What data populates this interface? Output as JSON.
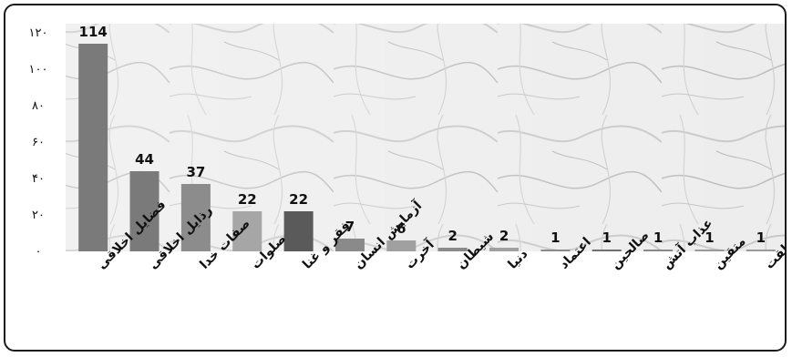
{
  "chart_data": {
    "type": "bar",
    "categories": [
      "فضایل اخلاقی",
      "رذایل اخلاقی",
      "صفات خدا",
      "صلوات",
      "فقر و غنا",
      "آزمایش انسان",
      "آخرت",
      "شیطان",
      "دنیا",
      "اعتماد",
      "صالحین",
      "عذاب آتش",
      "متقین",
      "هدف خلقت"
    ],
    "values": [
      114,
      44,
      37,
      22,
      22,
      7,
      6,
      2,
      2,
      1,
      1,
      1,
      1,
      1
    ],
    "data_labels": [
      "114",
      "44",
      "37",
      "22",
      "22",
      "7",
      "6",
      "2",
      "2",
      "1",
      "1",
      "1",
      "1",
      "1"
    ],
    "y_ticks": [
      "۰",
      "۲۰",
      "۴۰",
      "۶۰",
      "۸۰",
      "۱۰۰",
      "۱۲۰"
    ],
    "ylim": [
      0,
      120
    ],
    "grid": false,
    "bar_colors": [
      "#7a7a7a",
      "#7a7a7a",
      "#8c8c8c",
      "#a6a6a6",
      "#5a5a5a",
      "#8a8a8a",
      "#a0a0a0",
      "#8a8a8a",
      "#a0a0a0",
      "#8a8a8a",
      "#707070",
      "#8a8a8a",
      "#9a9a9a",
      "#9a9a9a"
    ],
    "title": "",
    "xlabel": "",
    "ylabel": ""
  }
}
